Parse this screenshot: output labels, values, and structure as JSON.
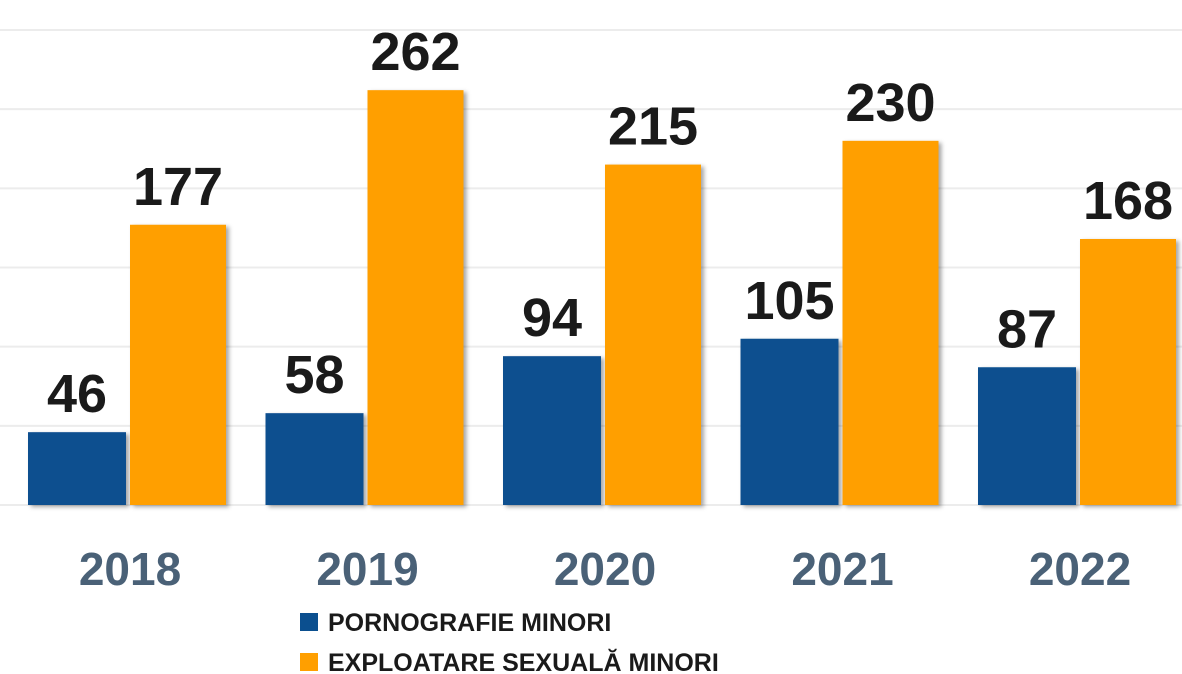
{
  "chart_data": {
    "type": "bar",
    "categories": [
      "2018",
      "2019",
      "2020",
      "2021",
      "2022"
    ],
    "series": [
      {
        "name": "PORNOGRAFIE MINORI",
        "color": "#0b4f8f",
        "values": [
          46,
          58,
          94,
          105,
          87
        ]
      },
      {
        "name": "EXPLOATARE SEXUALĂ MINORI",
        "color": "#ff9f00",
        "values": [
          177,
          262,
          215,
          230,
          168
        ]
      }
    ],
    "ylim": [
      0,
      300
    ],
    "yticks": [
      0,
      50,
      100,
      150,
      200,
      250,
      300
    ],
    "grid": true
  }
}
